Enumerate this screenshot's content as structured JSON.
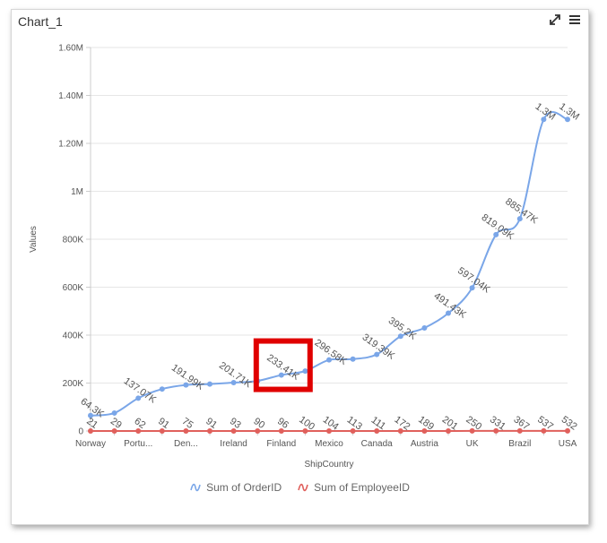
{
  "panel": {
    "title": "Chart_1"
  },
  "toolbar": {
    "expand_icon": "expand-icon",
    "menu_icon": "hamburger-menu-icon"
  },
  "chart_data": {
    "type": "line",
    "title": "",
    "xlabel": "ShipCountry",
    "ylabel": "Values",
    "ylim": [
      0,
      1600000
    ],
    "y_ticks": [
      {
        "value": 0,
        "label": "0"
      },
      {
        "value": 200000,
        "label": "200K"
      },
      {
        "value": 400000,
        "label": "400K"
      },
      {
        "value": 600000,
        "label": "600K"
      },
      {
        "value": 800000,
        "label": "800K"
      },
      {
        "value": 1000000,
        "label": "1M"
      },
      {
        "value": 1200000,
        "label": "1.20M"
      },
      {
        "value": 1400000,
        "label": "1.40M"
      },
      {
        "value": 1600000,
        "label": "1.60M"
      }
    ],
    "x_tick_labels": [
      {
        "index": 0,
        "label": "Norway"
      },
      {
        "index": 2,
        "label": "Portu..."
      },
      {
        "index": 4,
        "label": "Den..."
      },
      {
        "index": 6,
        "label": "Ireland"
      },
      {
        "index": 8,
        "label": "Finland"
      },
      {
        "index": 10,
        "label": "Mexico"
      },
      {
        "index": 12,
        "label": "Canada"
      },
      {
        "index": 14,
        "label": "Austria"
      },
      {
        "index": 16,
        "label": "UK"
      },
      {
        "index": 18,
        "label": "Brazil"
      },
      {
        "index": 20,
        "label": "USA"
      }
    ],
    "category_count": 21,
    "series": [
      {
        "name": "Sum of OrderID",
        "color": "#7aa6e8",
        "values": [
          64300,
          75000,
          137070,
          175000,
          191990,
          196000,
          201710,
          209000,
          233410,
          250000,
          296580,
          300000,
          319390,
          395200,
          430000,
          491430,
          597040,
          819090,
          885470,
          1300000,
          1300000
        ],
        "labels": [
          "64.3K",
          "",
          "137.07K",
          "",
          "191.99K",
          "",
          "201.71K",
          "",
          "233.41K",
          "",
          "296.58K",
          "",
          "319.39K",
          "395.2K",
          "",
          "491.43K",
          "597.04K",
          "819.09K",
          "885.47K",
          "1.3M",
          "1.3M"
        ]
      },
      {
        "name": "Sum of EmployeeID",
        "color": "#e0605c",
        "values": [
          21,
          29,
          62,
          91,
          75,
          91,
          93,
          90,
          96,
          100,
          104,
          113,
          111,
          172,
          189,
          201,
          250,
          331,
          367,
          537,
          532
        ],
        "labels": [
          "21",
          "29",
          "62",
          "91",
          "75",
          "91",
          "93",
          "90",
          "96",
          "100",
          "104",
          "113",
          "111",
          "172",
          "189",
          "201",
          "250",
          "331",
          "367",
          "537",
          "532"
        ]
      }
    ],
    "legend_position": "bottom",
    "grid": true,
    "highlight": {
      "label": "233.41K",
      "color": "#e00000"
    }
  }
}
